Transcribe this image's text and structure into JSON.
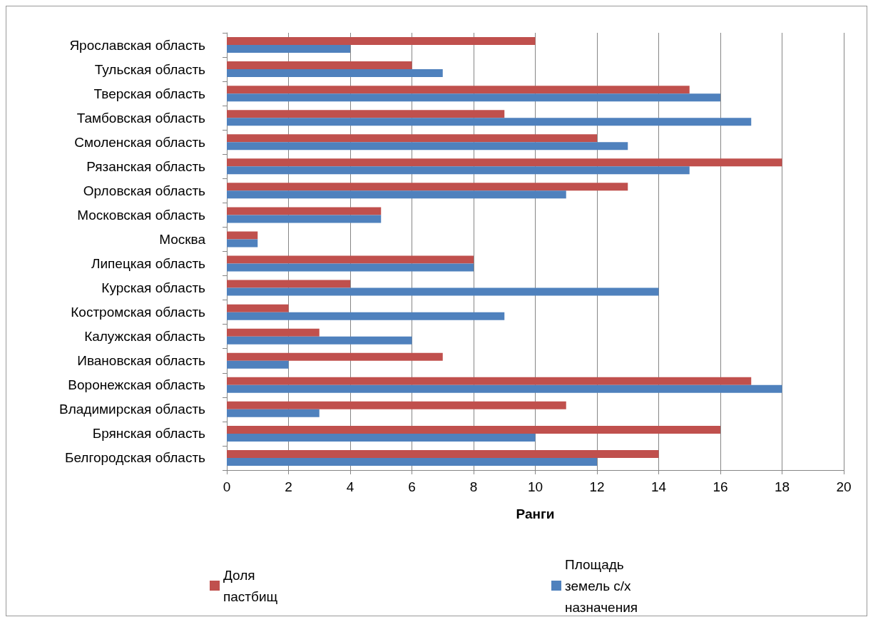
{
  "chart_data": {
    "type": "bar",
    "orientation": "horizontal",
    "xlabel": "Ранги",
    "categories": [
      "Ярославская область",
      "Тульская область",
      "Тверская область",
      "Тамбовская область",
      "Смоленская область",
      "Рязанская область",
      "Орловская область",
      "Московская область",
      "Москва",
      "Липецкая область",
      "Курская область",
      "Костромская область",
      "Калужская область",
      "Ивановская область",
      "Воронежская область",
      "Владимирская область",
      "Брянская область",
      "Белгородская область"
    ],
    "series": [
      {
        "name": "Доля пастбищ",
        "color": "#c0504d",
        "values": [
          10,
          6,
          15,
          9,
          12,
          18,
          13,
          5,
          1,
          8,
          4,
          2,
          3,
          7,
          17,
          11,
          16,
          14
        ]
      },
      {
        "name": "Площадь земель с/х назначения",
        "color": "#4f81bd",
        "values": [
          4,
          7,
          16,
          17,
          13,
          15,
          11,
          5,
          1,
          8,
          14,
          9,
          6,
          2,
          18,
          3,
          10,
          12
        ]
      }
    ],
    "xlim": [
      0,
      20
    ],
    "xticks": [
      0,
      2,
      4,
      6,
      8,
      10,
      12,
      14,
      16,
      18,
      20
    ],
    "grid": "x",
    "legend": "bottom"
  }
}
